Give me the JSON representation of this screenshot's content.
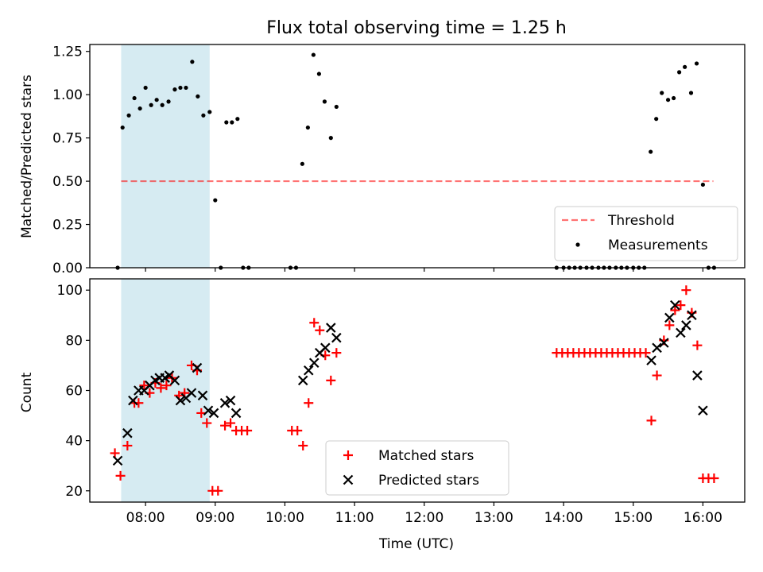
{
  "title": "Flux total observing time = 1.25 h",
  "chart_data": [
    {
      "type": "scatter",
      "ylabel": "Matched/Predicted stars",
      "xlim": [
        7.2,
        16.6
      ],
      "ylim": [
        0,
        1.29
      ],
      "y_ticks": [
        0,
        0.25,
        0.5,
        0.75,
        1.0,
        1.25
      ],
      "y_tick_labels": [
        "0.00",
        "0.25",
        "0.50",
        "0.75",
        "1.00",
        "1.25"
      ],
      "shaded_span": {
        "x_start": 7.65,
        "x_end": 8.92,
        "color": "#add8e6"
      },
      "threshold": {
        "name": "Threshold",
        "value": 0.5,
        "x_start": 7.65,
        "x_end": 16.15,
        "color": "#ff0000"
      },
      "legend_placement": "lower-right",
      "series": [
        {
          "name": "Measurements",
          "marker": "dot",
          "color": "#000000",
          "points": [
            [
              7.6,
              0.0
            ],
            [
              7.67,
              0.81
            ],
            [
              7.76,
              0.88
            ],
            [
              7.84,
              0.98
            ],
            [
              7.92,
              0.92
            ],
            [
              8.0,
              1.04
            ],
            [
              8.08,
              0.94
            ],
            [
              8.16,
              0.97
            ],
            [
              8.24,
              0.94
            ],
            [
              8.33,
              0.96
            ],
            [
              8.42,
              1.03
            ],
            [
              8.5,
              1.04
            ],
            [
              8.58,
              1.04
            ],
            [
              8.67,
              1.19
            ],
            [
              8.75,
              0.99
            ],
            [
              8.83,
              0.88
            ],
            [
              8.92,
              0.9
            ],
            [
              9.0,
              0.39
            ],
            [
              9.08,
              0.0
            ],
            [
              9.16,
              0.84
            ],
            [
              9.24,
              0.84
            ],
            [
              9.32,
              0.86
            ],
            [
              9.4,
              0.0
            ],
            [
              9.48,
              0.0
            ],
            [
              10.08,
              0.0
            ],
            [
              10.16,
              0.0
            ],
            [
              10.25,
              0.6
            ],
            [
              10.33,
              0.81
            ],
            [
              10.41,
              1.23
            ],
            [
              10.49,
              1.12
            ],
            [
              10.57,
              0.96
            ],
            [
              10.66,
              0.75
            ],
            [
              10.74,
              0.93
            ],
            [
              13.9,
              0.0
            ],
            [
              14.0,
              0.0
            ],
            [
              14.08,
              0.0
            ],
            [
              14.16,
              0.0
            ],
            [
              14.24,
              0.0
            ],
            [
              14.33,
              0.0
            ],
            [
              14.41,
              0.0
            ],
            [
              14.5,
              0.0
            ],
            [
              14.58,
              0.0
            ],
            [
              14.66,
              0.0
            ],
            [
              14.75,
              0.0
            ],
            [
              14.83,
              0.0
            ],
            [
              14.91,
              0.0
            ],
            [
              15.0,
              0.0
            ],
            [
              15.08,
              0.0
            ],
            [
              15.16,
              0.0
            ],
            [
              15.25,
              0.67
            ],
            [
              15.33,
              0.86
            ],
            [
              15.41,
              1.01
            ],
            [
              15.5,
              0.97
            ],
            [
              15.58,
              0.98
            ],
            [
              15.66,
              1.13
            ],
            [
              15.74,
              1.16
            ],
            [
              15.83,
              1.01
            ],
            [
              15.91,
              1.18
            ],
            [
              16.0,
              0.48
            ],
            [
              16.08,
              0.0
            ],
            [
              16.16,
              0.0
            ]
          ]
        }
      ]
    },
    {
      "type": "scatter",
      "xlabel": "Time (UTC)",
      "ylabel": "Count",
      "xlim": [
        7.2,
        16.6
      ],
      "ylim": [
        15.5,
        104.5
      ],
      "x_ticks": [
        8,
        9,
        10,
        11,
        12,
        13,
        14,
        15,
        16
      ],
      "x_tick_labels": [
        "08:00",
        "09:00",
        "10:00",
        "11:00",
        "12:00",
        "13:00",
        "14:00",
        "15:00",
        "16:00"
      ],
      "y_ticks": [
        20,
        40,
        60,
        80,
        100
      ],
      "y_tick_labels": [
        "20",
        "40",
        "60",
        "80",
        "100"
      ],
      "shaded_span": {
        "x_start": 7.65,
        "x_end": 8.92,
        "color": "#add8e6"
      },
      "legend_placement": "lower-center",
      "series": [
        {
          "name": "Matched stars",
          "marker": "plus",
          "color": "#ff0000",
          "points": [
            [
              7.56,
              35
            ],
            [
              7.64,
              26
            ],
            [
              7.74,
              38
            ],
            [
              7.84,
              55
            ],
            [
              7.9,
              55
            ],
            [
              7.98,
              62
            ],
            [
              8.06,
              59
            ],
            [
              8.14,
              63
            ],
            [
              8.22,
              61
            ],
            [
              8.3,
              62
            ],
            [
              8.38,
              65
            ],
            [
              8.48,
              58
            ],
            [
              8.56,
              59
            ],
            [
              8.66,
              70
            ],
            [
              8.74,
              68
            ],
            [
              8.8,
              51
            ],
            [
              8.88,
              47
            ],
            [
              8.96,
              20
            ],
            [
              9.04,
              20
            ],
            [
              9.14,
              46
            ],
            [
              9.22,
              47
            ],
            [
              9.3,
              44
            ],
            [
              9.38,
              44
            ],
            [
              9.46,
              44
            ],
            [
              10.1,
              44
            ],
            [
              10.18,
              44
            ],
            [
              10.26,
              38
            ],
            [
              10.34,
              55
            ],
            [
              10.42,
              87
            ],
            [
              10.5,
              84
            ],
            [
              10.58,
              74
            ],
            [
              10.66,
              64
            ],
            [
              10.74,
              75
            ],
            [
              13.9,
              75
            ],
            [
              13.98,
              75
            ],
            [
              14.06,
              75
            ],
            [
              14.14,
              75
            ],
            [
              14.22,
              75
            ],
            [
              14.3,
              75
            ],
            [
              14.38,
              75
            ],
            [
              14.46,
              75
            ],
            [
              14.54,
              75
            ],
            [
              14.62,
              75
            ],
            [
              14.7,
              75
            ],
            [
              14.78,
              75
            ],
            [
              14.86,
              75
            ],
            [
              14.94,
              75
            ],
            [
              15.02,
              75
            ],
            [
              15.1,
              75
            ],
            [
              15.18,
              75
            ],
            [
              15.26,
              48
            ],
            [
              15.34,
              66
            ],
            [
              15.44,
              80
            ],
            [
              15.52,
              86
            ],
            [
              15.6,
              92
            ],
            [
              15.68,
              94
            ],
            [
              15.76,
              100
            ],
            [
              15.84,
              91
            ],
            [
              15.92,
              78
            ],
            [
              16.0,
              25
            ],
            [
              16.08,
              25
            ],
            [
              16.16,
              25
            ]
          ]
        },
        {
          "name": "Predicted stars",
          "marker": "x",
          "color": "#000000",
          "points": [
            [
              7.6,
              32
            ],
            [
              7.74,
              43
            ],
            [
              7.82,
              56
            ],
            [
              7.9,
              60
            ],
            [
              7.98,
              60
            ],
            [
              8.06,
              62
            ],
            [
              8.14,
              64
            ],
            [
              8.2,
              65
            ],
            [
              8.28,
              65
            ],
            [
              8.34,
              66
            ],
            [
              8.42,
              64
            ],
            [
              8.5,
              56
            ],
            [
              8.58,
              57
            ],
            [
              8.66,
              59
            ],
            [
              8.74,
              69
            ],
            [
              8.82,
              58
            ],
            [
              8.9,
              52
            ],
            [
              8.98,
              51
            ],
            [
              9.14,
              55
            ],
            [
              9.22,
              56
            ],
            [
              9.3,
              51
            ],
            [
              10.26,
              64
            ],
            [
              10.34,
              68
            ],
            [
              10.42,
              71
            ],
            [
              10.5,
              75
            ],
            [
              10.58,
              77
            ],
            [
              10.66,
              85
            ],
            [
              10.74,
              81
            ],
            [
              15.26,
              72
            ],
            [
              15.34,
              77
            ],
            [
              15.44,
              79
            ],
            [
              15.52,
              89
            ],
            [
              15.6,
              94
            ],
            [
              15.68,
              83
            ],
            [
              15.76,
              86
            ],
            [
              15.84,
              90
            ],
            [
              15.92,
              66
            ],
            [
              16.0,
              52
            ]
          ]
        }
      ]
    }
  ]
}
